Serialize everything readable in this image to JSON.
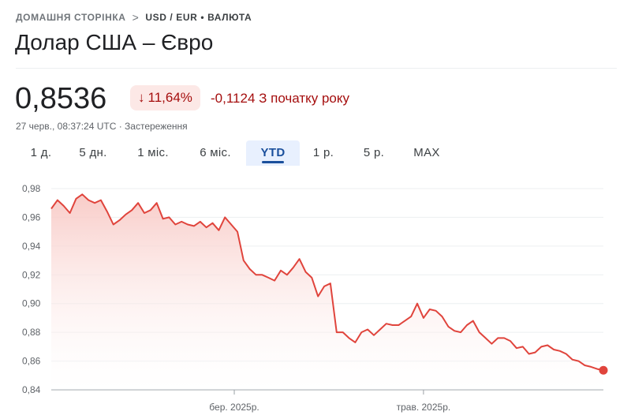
{
  "breadcrumb": {
    "home": "ДОМАШНЯ СТОРІНКА",
    "separator": ">",
    "current": "USD / EUR • ВАЛЮТА"
  },
  "title": "Долар США – Євро",
  "quote": {
    "price": "0,8536",
    "change_arrow": "↓",
    "change_percent": "11,64%",
    "change_text": "-0,1124 З початку року",
    "meta": "27 черв., 08:37:24 UTC · Застереження"
  },
  "tabs": [
    {
      "label": "1 д.",
      "active": false
    },
    {
      "label": "5 дн.",
      "active": false
    },
    {
      "label": "1 міс.",
      "active": false
    },
    {
      "label": "6 міс.",
      "active": false
    },
    {
      "label": "YTD",
      "active": true
    },
    {
      "label": "1 р.",
      "active": false
    },
    {
      "label": "5 р.",
      "active": false
    },
    {
      "label": "MAX",
      "active": false
    }
  ],
  "colors": {
    "line": "#e0443c",
    "fill_top": "#f8c9c5",
    "negative": "#a50e0e",
    "badge_bg": "#fce8e6",
    "active_tab": "#1a4f9c"
  },
  "chart_data": {
    "type": "area",
    "title": "",
    "xlabel": "",
    "ylabel": "",
    "ylim": [
      0.84,
      0.98
    ],
    "y_ticks": [
      0.98,
      0.96,
      0.94,
      0.92,
      0.9,
      0.88,
      0.86,
      0.84
    ],
    "y_tick_labels": [
      "0,98",
      "0,96",
      "0,94",
      "0,92",
      "0,90",
      "0,88",
      "0,86",
      "0,84"
    ],
    "x_range_days": [
      0,
      178
    ],
    "x_ticks": [
      {
        "day": 59,
        "label": "бер. 2025р."
      },
      {
        "day": 120,
        "label": "трав. 2025р."
      }
    ],
    "grid": true,
    "legend": "none",
    "x": [
      0,
      2,
      4,
      6,
      8,
      10,
      12,
      14,
      16,
      18,
      20,
      22,
      24,
      26,
      28,
      30,
      32,
      34,
      36,
      38,
      40,
      42,
      44,
      46,
      48,
      50,
      52,
      54,
      56,
      58,
      60,
      62,
      64,
      66,
      68,
      70,
      72,
      74,
      76,
      78,
      80,
      82,
      84,
      86,
      88,
      90,
      92,
      94,
      96,
      98,
      100,
      102,
      104,
      106,
      108,
      110,
      112,
      114,
      116,
      118,
      120,
      122,
      124,
      126,
      128,
      130,
      132,
      134,
      136,
      138,
      140,
      142,
      144,
      146,
      148,
      150,
      152,
      154,
      156,
      158,
      160,
      162,
      164,
      166,
      168,
      170,
      172,
      174,
      176,
      178
    ],
    "y": [
      0.966,
      0.972,
      0.968,
      0.963,
      0.973,
      0.976,
      0.972,
      0.97,
      0.972,
      0.964,
      0.955,
      0.958,
      0.962,
      0.965,
      0.97,
      0.963,
      0.965,
      0.97,
      0.959,
      0.96,
      0.955,
      0.957,
      0.955,
      0.954,
      0.957,
      0.953,
      0.956,
      0.951,
      0.96,
      0.955,
      0.95,
      0.93,
      0.924,
      0.92,
      0.92,
      0.918,
      0.916,
      0.923,
      0.92,
      0.925,
      0.931,
      0.922,
      0.918,
      0.905,
      0.912,
      0.914,
      0.88,
      0.88,
      0.876,
      0.873,
      0.88,
      0.882,
      0.878,
      0.882,
      0.886,
      0.885,
      0.885,
      0.888,
      0.891,
      0.9,
      0.89,
      0.896,
      0.895,
      0.891,
      0.884,
      0.881,
      0.88,
      0.885,
      0.888,
      0.88,
      0.876,
      0.872,
      0.876,
      0.876,
      0.874,
      0.869,
      0.87,
      0.865,
      0.866,
      0.87,
      0.871,
      0.868,
      0.867,
      0.865,
      0.861,
      0.86,
      0.857,
      0.856,
      0.8545,
      0.8536
    ]
  }
}
